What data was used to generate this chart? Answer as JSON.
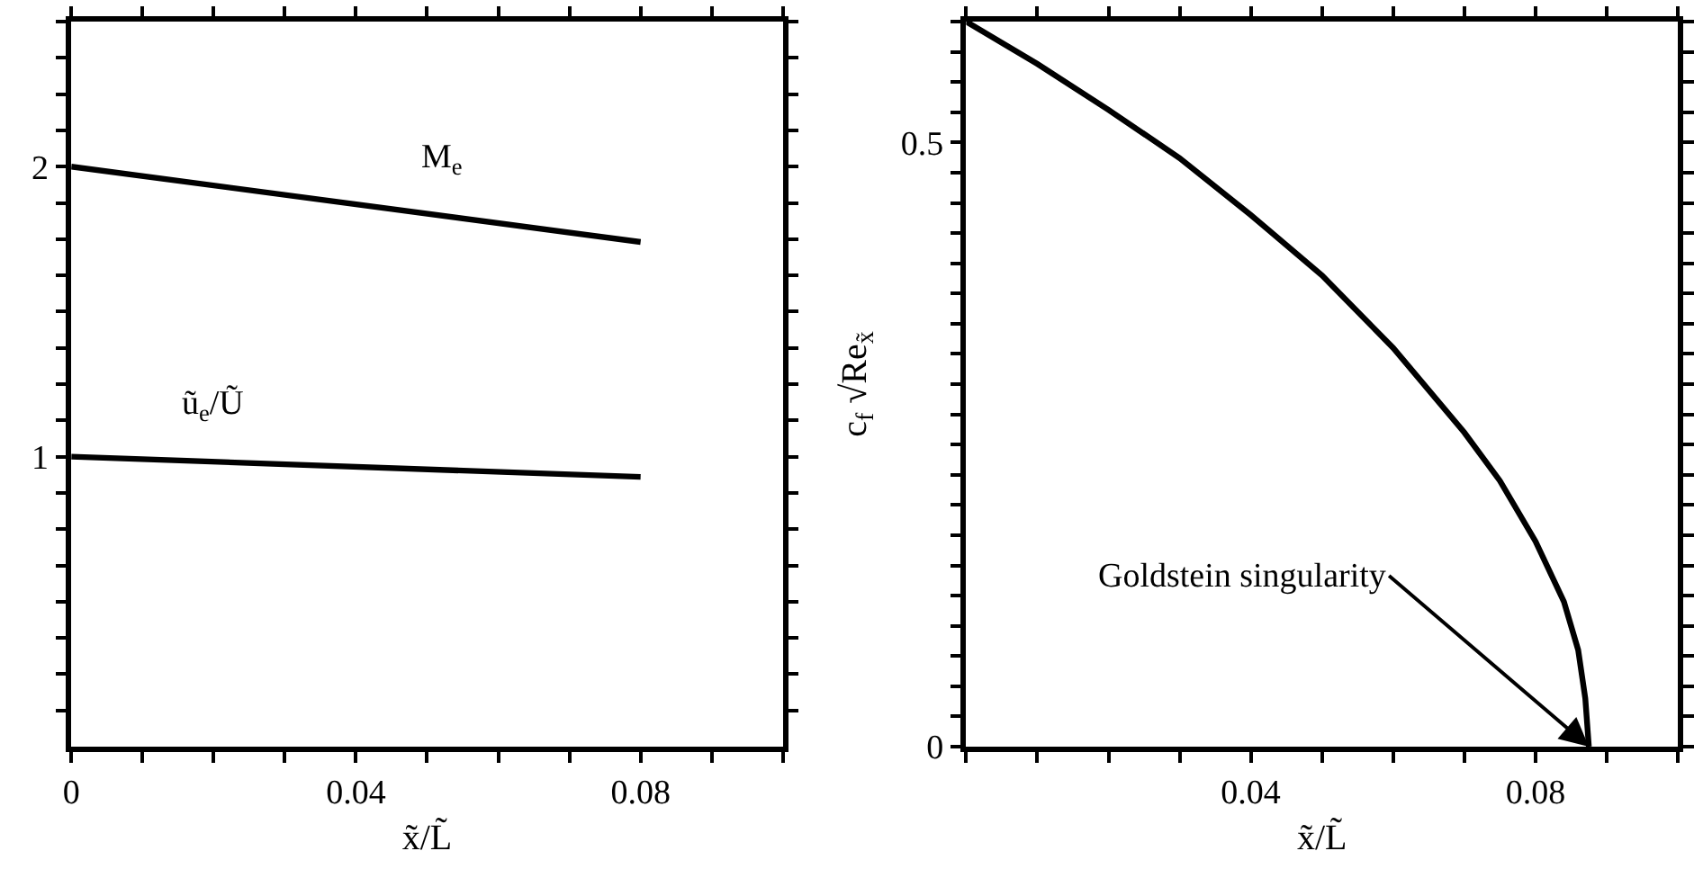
{
  "chart_data": [
    {
      "type": "line",
      "xlabel": "x̃/L̃",
      "xlim": [
        0,
        0.1
      ],
      "ylim": [
        0,
        2.5
      ],
      "xticks": [
        {
          "value": 0,
          "label": "0"
        },
        {
          "value": 0.01,
          "label": null
        },
        {
          "value": 0.02,
          "label": null
        },
        {
          "value": 0.03,
          "label": null
        },
        {
          "value": 0.04,
          "label": "0.04"
        },
        {
          "value": 0.05,
          "label": null
        },
        {
          "value": 0.06,
          "label": null
        },
        {
          "value": 0.07,
          "label": null
        },
        {
          "value": 0.08,
          "label": "0.08"
        },
        {
          "value": 0.09,
          "label": null
        },
        {
          "value": 0.1,
          "label": null
        }
      ],
      "yticks": [
        {
          "value": 0.125,
          "label": null
        },
        {
          "value": 0.25,
          "label": null
        },
        {
          "value": 0.375,
          "label": null
        },
        {
          "value": 0.5,
          "label": null
        },
        {
          "value": 0.625,
          "label": null
        },
        {
          "value": 0.75,
          "label": null
        },
        {
          "value": 0.875,
          "label": null
        },
        1,
        {
          "value": 1.125,
          "label": null
        },
        {
          "value": 1.25,
          "label": null
        },
        {
          "value": 1.375,
          "label": null
        },
        {
          "value": 1.5,
          "label": null
        },
        {
          "value": 1.625,
          "label": null
        },
        {
          "value": 1.75,
          "label": null
        },
        {
          "value": 1.875,
          "label": null
        },
        2,
        {
          "value": 2.125,
          "label": null
        },
        {
          "value": 2.25,
          "label": null
        },
        {
          "value": 2.375,
          "label": null
        },
        {
          "value": 2.5,
          "label": null
        }
      ],
      "series": [
        {
          "name": "M$_{e}$",
          "color": "#000000",
          "x": [
            0,
            0.08
          ],
          "values": [
            2.0,
            1.74
          ]
        },
        {
          "name": "ũ$_{e}$/Ũ",
          "color": "#000000",
          "x": [
            0,
            0.08
          ],
          "values": [
            1.0,
            0.93
          ]
        }
      ]
    },
    {
      "type": "line",
      "xlabel": "x̃/L̃",
      "ylabel": "c$_{f}$ √Re$_{x̃}$",
      "xlim": [
        0,
        0.1
      ],
      "ylim": [
        0,
        0.6
      ],
      "xticks": [
        {
          "value": 0,
          "label": null
        },
        {
          "value": 0.01,
          "label": null
        },
        {
          "value": 0.02,
          "label": null
        },
        {
          "value": 0.03,
          "label": null
        },
        {
          "value": 0.04,
          "label": "0.04"
        },
        {
          "value": 0.05,
          "label": null
        },
        {
          "value": 0.06,
          "label": null
        },
        {
          "value": 0.07,
          "label": null
        },
        {
          "value": 0.08,
          "label": "0.08"
        },
        {
          "value": 0.09,
          "label": null
        },
        {
          "value": 0.1,
          "label": null
        }
      ],
      "yticks": [
        {
          "value": 0,
          "label": "0"
        },
        {
          "value": 0.025,
          "label": null
        },
        {
          "value": 0.05,
          "label": null
        },
        {
          "value": 0.075,
          "label": null
        },
        {
          "value": 0.1,
          "label": null
        },
        {
          "value": 0.125,
          "label": null
        },
        {
          "value": 0.15,
          "label": null
        },
        {
          "value": 0.175,
          "label": null
        },
        {
          "value": 0.2,
          "label": null
        },
        {
          "value": 0.225,
          "label": null
        },
        {
          "value": 0.25,
          "label": null
        },
        {
          "value": 0.275,
          "label": null
        },
        {
          "value": 0.3,
          "label": null
        },
        {
          "value": 0.325,
          "label": null
        },
        {
          "value": 0.35,
          "label": null
        },
        {
          "value": 0.375,
          "label": null
        },
        {
          "value": 0.4,
          "label": null
        },
        {
          "value": 0.425,
          "label": null
        },
        {
          "value": 0.45,
          "label": null
        },
        {
          "value": 0.475,
          "label": null
        },
        0.5,
        {
          "value": 0.525,
          "label": null
        },
        {
          "value": 0.55,
          "label": null
        },
        {
          "value": 0.575,
          "label": null
        },
        {
          "value": 0.6,
          "label": null
        }
      ],
      "series": [
        {
          "color": "#000000",
          "x": [
            0,
            0.01,
            0.02,
            0.03,
            0.04,
            0.05,
            0.06,
            0.07,
            0.075,
            0.08,
            0.084,
            0.086,
            0.087,
            0.0875
          ],
          "values": [
            0.6,
            0.565,
            0.527,
            0.487,
            0.44,
            0.39,
            0.33,
            0.26,
            0.22,
            0.17,
            0.12,
            0.08,
            0.04,
            0
          ]
        }
      ],
      "annotations": [
        {
          "text": "Goldstein singularity",
          "x": 0.0875,
          "y": 0
        }
      ]
    }
  ]
}
